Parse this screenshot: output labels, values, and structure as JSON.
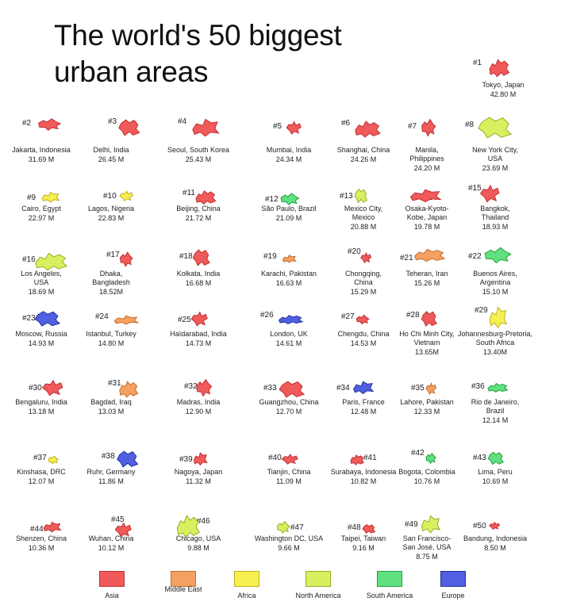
{
  "title": "The world's 50 biggest urban areas",
  "colors": {
    "asia": "#f05a5a",
    "middle_east": "#f5a060",
    "africa": "#f5f050",
    "north_america": "#d8f060",
    "south_america": "#60e080",
    "europe": "#5060e0"
  },
  "legend": [
    {
      "label": "Asia",
      "color": "#f05a5a",
      "border": "#c03030"
    },
    {
      "label": "Middle East",
      "color": "#f5a060",
      "border": "#c07030"
    },
    {
      "label": "Africa",
      "color": "#f5f050",
      "border": "#c0b020"
    },
    {
      "label": "North America",
      "color": "#d8f060",
      "border": "#90b020"
    },
    {
      "label": "South America",
      "color": "#60e080",
      "border": "#20a040"
    },
    {
      "label": "Europe",
      "color": "#5060e0",
      "border": "#2030a0"
    }
  ],
  "areas": [
    {
      "rank": "#1",
      "name": [
        "Tokyo, Japan"
      ],
      "pop": "42.80 M",
      "region": "asia"
    },
    {
      "rank": "#2",
      "name": [
        "Jakarta, Indonesia"
      ],
      "pop": "31.69 M",
      "region": "asia"
    },
    {
      "rank": "#3",
      "name": [
        "Delhi, India"
      ],
      "pop": "26.45 M",
      "region": "asia"
    },
    {
      "rank": "#4",
      "name": [
        "Seoul, South Korea"
      ],
      "pop": "25.43 M",
      "region": "asia"
    },
    {
      "rank": "#5",
      "name": [
        "Mumbai, India"
      ],
      "pop": "24.34 M",
      "region": "asia"
    },
    {
      "rank": "#6",
      "name": [
        "Shanghai, China"
      ],
      "pop": "24.26 M",
      "region": "asia"
    },
    {
      "rank": "#7",
      "name": [
        "Manila,",
        "Philippines"
      ],
      "pop": "24.20 M",
      "region": "asia"
    },
    {
      "rank": "#8",
      "name": [
        "New York City,",
        "USA"
      ],
      "pop": "23.69 M",
      "region": "north_america"
    },
    {
      "rank": "#9",
      "name": [
        "Cairo, Egypt"
      ],
      "pop": "22.97 M",
      "region": "africa"
    },
    {
      "rank": "#10",
      "name": [
        "Lagos, Nigeria"
      ],
      "pop": "22.83 M",
      "region": "africa"
    },
    {
      "rank": "#11",
      "name": [
        "Beijing, China"
      ],
      "pop": "21.72 M",
      "region": "asia"
    },
    {
      "rank": "#12",
      "name": [
        "São Paulo, Brazil"
      ],
      "pop": "21.09 M",
      "region": "south_america"
    },
    {
      "rank": "#13",
      "name": [
        "Mexico City,",
        "Mexico"
      ],
      "pop": "20.88 M",
      "region": "north_america"
    },
    {
      "rank": "#14",
      "name": [
        "Osaka-Kyoto-",
        "Kobe, Japan"
      ],
      "pop": "19.78 M",
      "region": "asia"
    },
    {
      "rank": "#15",
      "name": [
        "Bangkok,",
        "Thailand"
      ],
      "pop": "18.93 M",
      "region": "asia"
    },
    {
      "rank": "#16",
      "name": [
        "Los Angeles,",
        "USA"
      ],
      "pop": "18.69 M",
      "region": "north_america"
    },
    {
      "rank": "#17",
      "name": [
        "Dhaka,",
        "Bangladesh"
      ],
      "pop": "18.52M",
      "region": "asia"
    },
    {
      "rank": "#18",
      "name": [
        "Kolkata, India"
      ],
      "pop": "16.68 M",
      "region": "asia"
    },
    {
      "rank": "#19",
      "name": [
        "Karachi, Pakistan"
      ],
      "pop": "16.63 M",
      "region": "middle_east"
    },
    {
      "rank": "#20",
      "name": [
        "Chongqing,",
        "China"
      ],
      "pop": "15.29 M",
      "region": "asia"
    },
    {
      "rank": "#21",
      "name": [
        "Teheran, Iran"
      ],
      "pop": "15.26 M",
      "region": "middle_east"
    },
    {
      "rank": "#22",
      "name": [
        "Buenos Aires,",
        "Argentina"
      ],
      "pop": "15.10 M",
      "region": "south_america"
    },
    {
      "rank": "#23",
      "name": [
        "Moscow, Russia"
      ],
      "pop": "14.93 M",
      "region": "europe"
    },
    {
      "rank": "#24",
      "name": [
        "Istanbul, Turkey"
      ],
      "pop": "14.80 M",
      "region": "middle_east"
    },
    {
      "rank": "#25",
      "name": [
        "Haïdarabad, India"
      ],
      "pop": "14.73 M",
      "region": "asia"
    },
    {
      "rank": "#26",
      "name": [
        "London, UK"
      ],
      "pop": "14.61 M",
      "region": "europe"
    },
    {
      "rank": "#27",
      "name": [
        "Chengdu, China"
      ],
      "pop": "14.53 M",
      "region": "asia"
    },
    {
      "rank": "#28",
      "name": [
        "Ho Chi Minh City,",
        "Vietnam"
      ],
      "pop": "13.65M",
      "region": "asia"
    },
    {
      "rank": "#29",
      "name": [
        "Johannesburg-Pretoria,",
        "South Africa"
      ],
      "pop": "13.40M",
      "region": "africa"
    },
    {
      "rank": "#30",
      "name": [
        "Bengaluru, India"
      ],
      "pop": "13.18 M",
      "region": "asia"
    },
    {
      "rank": "#31",
      "name": [
        "Bagdad, Iraq"
      ],
      "pop": "13.03 M",
      "region": "middle_east"
    },
    {
      "rank": "#32",
      "name": [
        "Madras, India"
      ],
      "pop": "12.90 M",
      "region": "asia"
    },
    {
      "rank": "#33",
      "name": [
        "Guangzhou, China"
      ],
      "pop": "12.70 M",
      "region": "asia"
    },
    {
      "rank": "#34",
      "name": [
        "Paris, France"
      ],
      "pop": "12.48 M",
      "region": "europe"
    },
    {
      "rank": "#35",
      "name": [
        "Lahore, Pakistan"
      ],
      "pop": "12.33 M",
      "region": "middle_east"
    },
    {
      "rank": "#36",
      "name": [
        "Rio de Janeiro,",
        "Brazil"
      ],
      "pop": "12.14 M",
      "region": "south_america"
    },
    {
      "rank": "#37",
      "name": [
        "Kinshasa, DRC"
      ],
      "pop": "12.07 M",
      "region": "africa"
    },
    {
      "rank": "#38",
      "name": [
        "Ruhr, Germany"
      ],
      "pop": "11.86 M",
      "region": "europe"
    },
    {
      "rank": "#39",
      "name": [
        "Nagoya, Japan"
      ],
      "pop": "11.32 M",
      "region": "asia"
    },
    {
      "rank": "#40",
      "name": [
        "Tianjin, China"
      ],
      "pop": "11.09 M",
      "region": "asia"
    },
    {
      "rank": "#41",
      "name": [
        "Surabaya, Indonesia"
      ],
      "pop": "10.82 M",
      "region": "asia"
    },
    {
      "rank": "#42",
      "name": [
        "Bogota, Colombia"
      ],
      "pop": "10.76 M",
      "region": "south_america"
    },
    {
      "rank": "#43",
      "name": [
        "Lima, Peru"
      ],
      "pop": "10.69 M",
      "region": "south_america"
    },
    {
      "rank": "#44",
      "name": [
        "Shenzen, China"
      ],
      "pop": "10.36 M",
      "region": "asia"
    },
    {
      "rank": "#45",
      "name": [
        "Wuhan, China"
      ],
      "pop": "10.12 M",
      "region": "asia"
    },
    {
      "rank": "#46",
      "name": [
        "Chicago, USA"
      ],
      "pop": "9.88 M",
      "region": "north_america"
    },
    {
      "rank": "#47",
      "name": [
        "Washington DC, USA"
      ],
      "pop": "9.66 M",
      "region": "north_america"
    },
    {
      "rank": "#48",
      "name": [
        "Taipei, Taiwan"
      ],
      "pop": "9.16 M",
      "region": "asia"
    },
    {
      "rank": "#49",
      "name": [
        "San Francisco-",
        "San José, USA"
      ],
      "pop": "8.75 M",
      "region": "north_america"
    },
    {
      "rank": "#50",
      "name": [
        "Bandung, Indonesia"
      ],
      "pop": "8.50 M",
      "region": "asia"
    }
  ]
}
